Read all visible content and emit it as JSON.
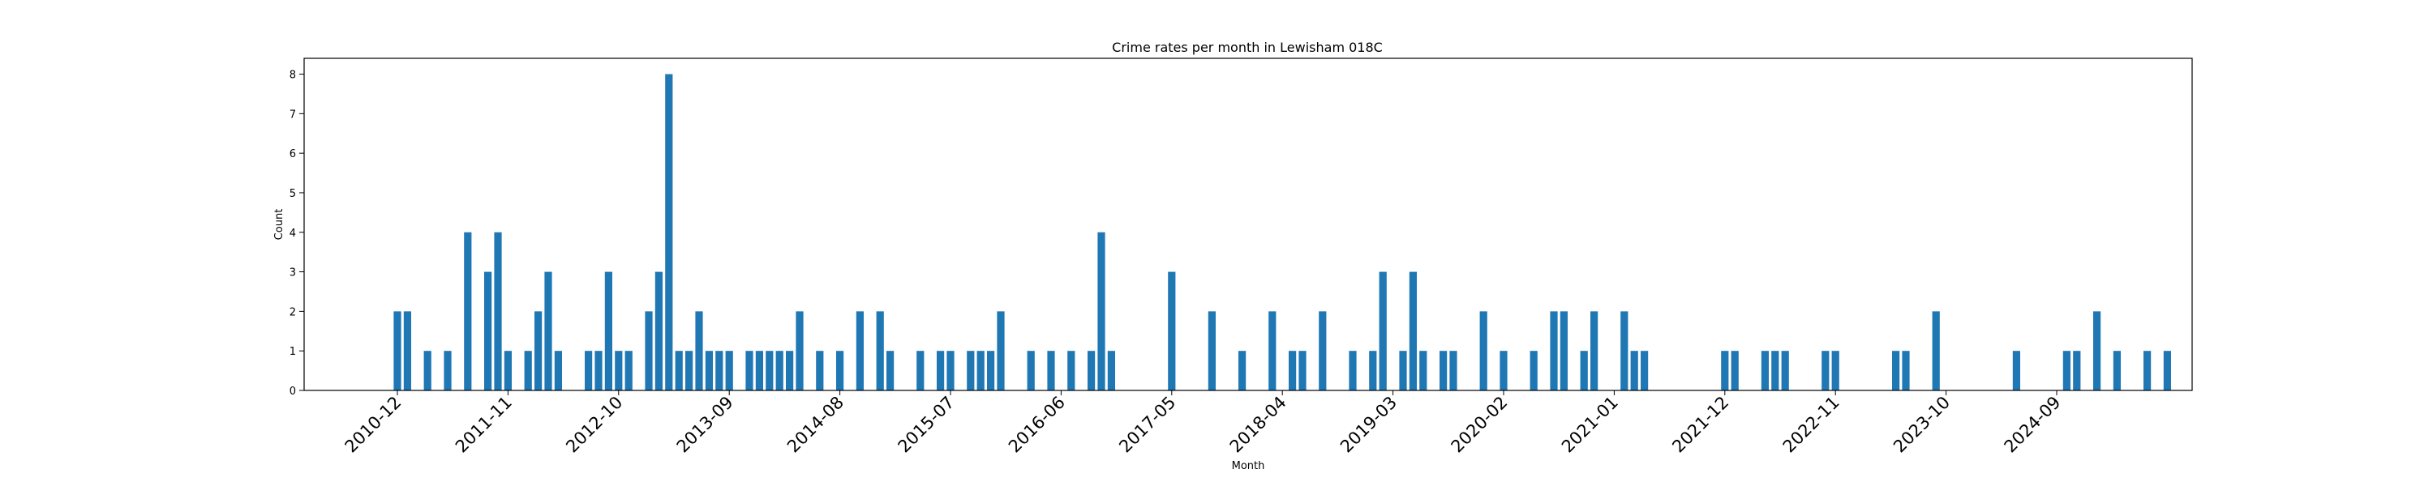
{
  "chart_data": {
    "type": "bar",
    "title": "Crime rates per month in Lewisham 018C",
    "xlabel": "Month",
    "ylabel": "Count",
    "ylim": [
      0,
      8.4
    ],
    "yticks": [
      0,
      1,
      2,
      3,
      4,
      5,
      6,
      7,
      8
    ],
    "xtick_labels": [
      "2010-12",
      "2011-11",
      "2012-10",
      "2013-09",
      "2014-08",
      "2015-07",
      "2016-06",
      "2017-05",
      "2018-04",
      "2019-03",
      "2020-02",
      "2021-01",
      "2021-12",
      "2022-11",
      "2023-10",
      "2024-09"
    ],
    "grid": false,
    "bar_color": "#1f77b4",
    "data": [
      [
        "2010-12",
        2
      ],
      [
        "2011-01",
        2
      ],
      [
        "2011-03",
        1
      ],
      [
        "2011-05",
        1
      ],
      [
        "2011-07",
        4
      ],
      [
        "2011-09",
        3
      ],
      [
        "2011-10",
        4
      ],
      [
        "2011-11",
        1
      ],
      [
        "2012-01",
        1
      ],
      [
        "2012-02",
        2
      ],
      [
        "2012-03",
        3
      ],
      [
        "2012-04",
        1
      ],
      [
        "2012-07",
        1
      ],
      [
        "2012-08",
        1
      ],
      [
        "2012-09",
        3
      ],
      [
        "2012-10",
        1
      ],
      [
        "2012-11",
        1
      ],
      [
        "2013-01",
        2
      ],
      [
        "2013-02",
        3
      ],
      [
        "2013-03",
        8
      ],
      [
        "2013-04",
        1
      ],
      [
        "2013-05",
        1
      ],
      [
        "2013-06",
        2
      ],
      [
        "2013-07",
        1
      ],
      [
        "2013-08",
        1
      ],
      [
        "2013-09",
        1
      ],
      [
        "2013-11",
        1
      ],
      [
        "2013-12",
        1
      ],
      [
        "2014-01",
        1
      ],
      [
        "2014-02",
        1
      ],
      [
        "2014-03",
        1
      ],
      [
        "2014-04",
        2
      ],
      [
        "2014-06",
        1
      ],
      [
        "2014-08",
        1
      ],
      [
        "2014-10",
        2
      ],
      [
        "2014-12",
        2
      ],
      [
        "2015-01",
        1
      ],
      [
        "2015-04",
        1
      ],
      [
        "2015-06",
        1
      ],
      [
        "2015-07",
        1
      ],
      [
        "2015-09",
        1
      ],
      [
        "2015-10",
        1
      ],
      [
        "2015-11",
        1
      ],
      [
        "2015-12",
        2
      ],
      [
        "2016-03",
        1
      ],
      [
        "2016-05",
        1
      ],
      [
        "2016-07",
        1
      ],
      [
        "2016-09",
        1
      ],
      [
        "2016-10",
        4
      ],
      [
        "2016-11",
        1
      ],
      [
        "2017-05",
        3
      ],
      [
        "2017-09",
        2
      ],
      [
        "2017-12",
        1
      ],
      [
        "2018-03",
        2
      ],
      [
        "2018-05",
        1
      ],
      [
        "2018-06",
        1
      ],
      [
        "2018-08",
        2
      ],
      [
        "2018-11",
        1
      ],
      [
        "2019-01",
        1
      ],
      [
        "2019-02",
        3
      ],
      [
        "2019-04",
        1
      ],
      [
        "2019-05",
        3
      ],
      [
        "2019-06",
        1
      ],
      [
        "2019-08",
        1
      ],
      [
        "2019-09",
        1
      ],
      [
        "2019-12",
        2
      ],
      [
        "2020-02",
        1
      ],
      [
        "2020-05",
        1
      ],
      [
        "2020-07",
        2
      ],
      [
        "2020-08",
        2
      ],
      [
        "2020-10",
        1
      ],
      [
        "2020-11",
        2
      ],
      [
        "2021-02",
        2
      ],
      [
        "2021-03",
        1
      ],
      [
        "2021-04",
        1
      ],
      [
        "2021-12",
        1
      ],
      [
        "2022-01",
        1
      ],
      [
        "2022-04",
        1
      ],
      [
        "2022-05",
        1
      ],
      [
        "2022-06",
        1
      ],
      [
        "2022-10",
        1
      ],
      [
        "2022-11",
        1
      ],
      [
        "2023-05",
        1
      ],
      [
        "2023-06",
        1
      ],
      [
        "2023-09",
        2
      ],
      [
        "2024-05",
        1
      ],
      [
        "2024-10",
        1
      ],
      [
        "2024-11",
        1
      ],
      [
        "2025-01",
        2
      ],
      [
        "2025-03",
        1
      ],
      [
        "2025-06",
        1
      ],
      [
        "2025-08",
        1
      ]
    ]
  }
}
